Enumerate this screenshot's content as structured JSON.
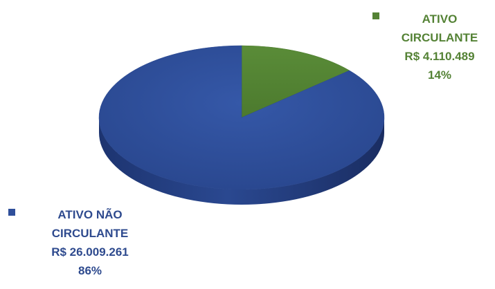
{
  "chart_data": {
    "type": "pie",
    "style": "3d",
    "slices": [
      {
        "label_line1": "ATIVO",
        "label_line2": "CIRCULANTE",
        "value_text": "R$ 4.110.489",
        "percent_text": "14%",
        "value": 4110489,
        "percent": 14,
        "color": "#548235",
        "label_color": "#548235"
      },
      {
        "label_line1": "ATIVO NÃO",
        "label_line2": "CIRCULANTE",
        "value_text": "R$ 26.009.261",
        "percent_text": "86%",
        "value": 26009261,
        "percent": 86,
        "color": "#2F4F9A",
        "label_color": "#2E4A8E"
      }
    ],
    "legend": "data-labels-beside-slices"
  }
}
